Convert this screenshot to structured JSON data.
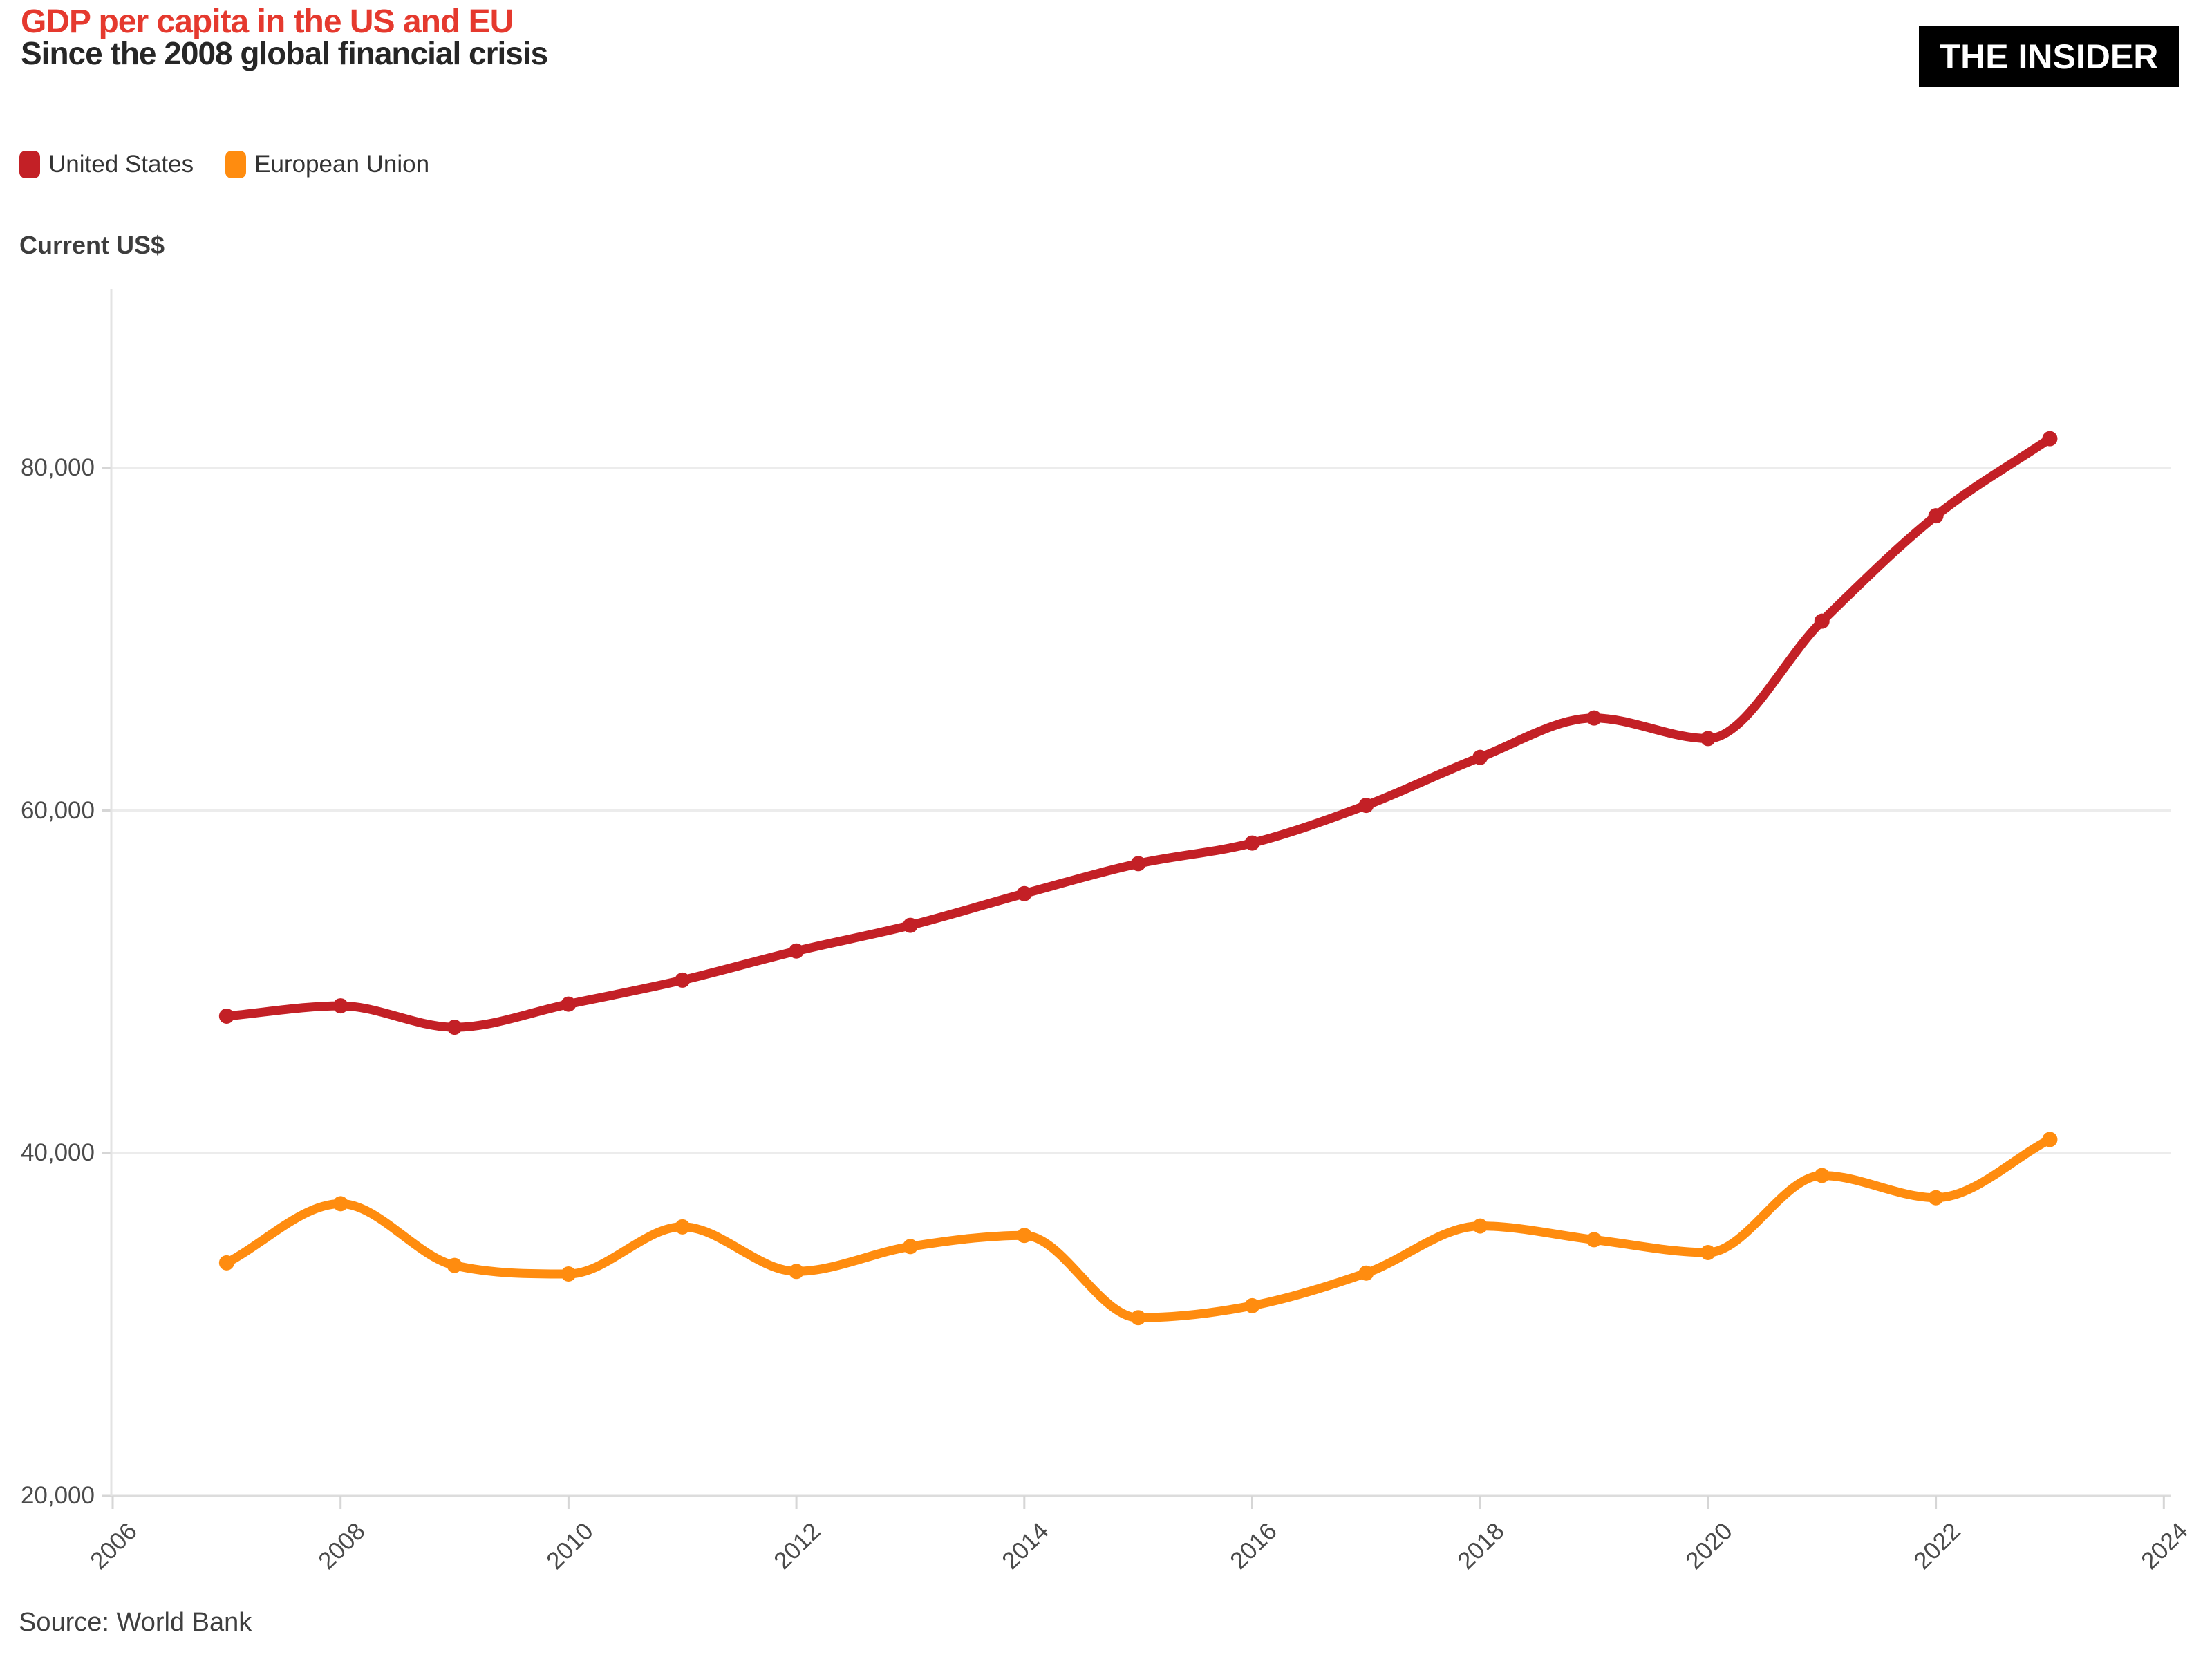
{
  "header": {
    "title": "GDP per capita in the US and EU",
    "subtitle": "Since the 2008 global financial crisis",
    "logo_text": "THE INSIDER"
  },
  "legend": [
    {
      "label": "United States",
      "color": "#c32026"
    },
    {
      "label": "European Union",
      "color": "#ff8c0f"
    }
  ],
  "axis_title": "Current US$",
  "source": "Source: World Bank",
  "colors": {
    "title_accent": "#e5392e",
    "gridline": "#ececec",
    "baseline": "#dcdcdc",
    "axis_line": "#e3e3e3",
    "tick_mark": "#d6d6d6"
  },
  "chart_data": {
    "type": "line",
    "title": "GDP per capita in the US and EU",
    "subtitle": "Since the 2008 global financial crisis",
    "xlabel": "",
    "ylabel": "Current US$",
    "grid": true,
    "legend_position": "top-left",
    "xlim": [
      2006,
      2024
    ],
    "ylim": [
      20000,
      90000
    ],
    "x": [
      2007,
      2008,
      2009,
      2010,
      2011,
      2012,
      2013,
      2014,
      2015,
      2016,
      2017,
      2018,
      2019,
      2020,
      2021,
      2022,
      2023
    ],
    "series": [
      {
        "name": "United States",
        "color": "#c32026",
        "values": [
          48000,
          48600,
          47350,
          48700,
          50100,
          51800,
          53300,
          55150,
          56900,
          58100,
          60300,
          63100,
          65400,
          64200,
          71050,
          77200,
          81700
        ]
      },
      {
        "name": "European Union",
        "color": "#ff8c0f",
        "values": [
          33600,
          37050,
          33450,
          32950,
          35700,
          33100,
          34550,
          35200,
          30400,
          31100,
          33000,
          35750,
          34950,
          34200,
          38700,
          37400,
          40800
        ]
      }
    ],
    "x_ticks": [
      2006,
      2008,
      2010,
      2012,
      2014,
      2016,
      2018,
      2020,
      2022,
      2024
    ],
    "y_ticks": [
      {
        "value": 20000,
        "label": "20,000"
      },
      {
        "value": 40000,
        "label": "40,000"
      },
      {
        "value": 60000,
        "label": "60,000"
      },
      {
        "value": 80000,
        "label": "80,000"
      }
    ]
  }
}
